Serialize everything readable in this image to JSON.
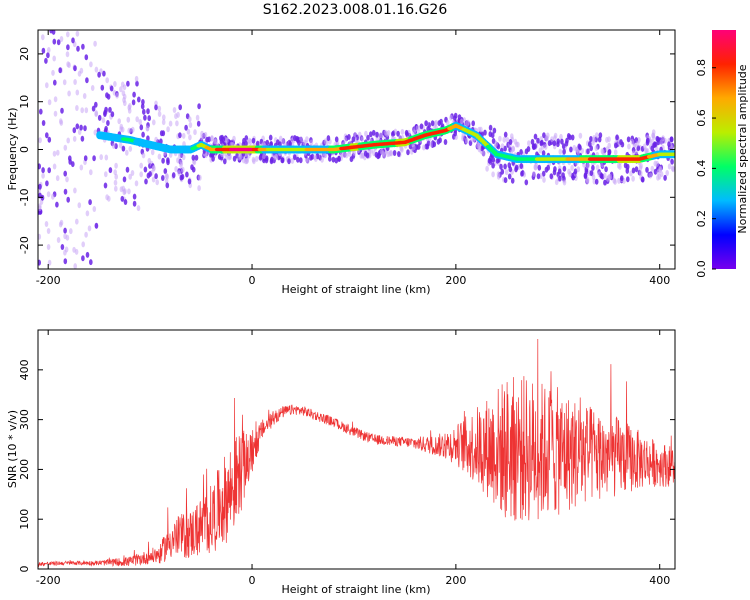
{
  "figure_title": "S162.2023.008.01.16.G26",
  "colors": {
    "snr_line": "#ee3333",
    "spectrum_high": "#ee2222",
    "spectrum_mid": "#33ee55",
    "spectrum_low": "#22bbee",
    "spectrum_floor": "#7722ee"
  },
  "chart_data": [
    {
      "type": "heatmap",
      "xlabel": "Height of straight line (km)",
      "ylabel": "Frequency (Hz)",
      "xlim": [
        -210,
        415
      ],
      "ylim": [
        -25,
        25
      ],
      "x_ticks": [
        -200,
        0,
        200,
        400
      ],
      "y_ticks": [
        -20,
        -10,
        0,
        10,
        20
      ],
      "colorbar": {
        "label": "Normalized spectral amplitude",
        "range": [
          0.0,
          0.95
        ],
        "ticks": [
          0.0,
          0.2,
          0.4,
          0.6,
          0.8
        ],
        "colormap": [
          "#7700ee",
          "#0000ff",
          "#00bbff",
          "#00ff66",
          "#bbee00",
          "#ffaa00",
          "#ff2200",
          "#ff0077"
        ]
      },
      "ridge": {
        "description_points_x": [
          -150,
          -120,
          -100,
          -80,
          -60,
          -50,
          -40,
          -20,
          0,
          20,
          50,
          80,
          100,
          120,
          150,
          170,
          190,
          200,
          220,
          240,
          260,
          300,
          340,
          380,
          400,
          415
        ],
        "frequency": [
          3,
          2,
          1,
          0,
          0,
          1,
          0,
          0,
          0,
          0,
          0,
          0,
          0.5,
          1,
          1.5,
          3,
          4,
          5,
          3,
          -1,
          -2,
          -2,
          -2,
          -2,
          -1,
          -1
        ],
        "amplitude": [
          0.3,
          0.35,
          0.3,
          0.3,
          0.3,
          0.55,
          0.7,
          0.9,
          0.9,
          0.5,
          0.6,
          0.7,
          0.85,
          0.75,
          0.85,
          0.75,
          0.8,
          0.65,
          0.55,
          0.4,
          0.4,
          0.55,
          0.8,
          0.85,
          0.6,
          0.55
        ]
      }
    },
    {
      "type": "line",
      "xlabel": "Height of straight line (km)",
      "ylabel": "SNR (10 * v/v)",
      "xlim": [
        -210,
        415
      ],
      "ylim": [
        0,
        480
      ],
      "x_ticks": [
        -200,
        0,
        200,
        400
      ],
      "y_ticks": [
        0,
        100,
        200,
        300,
        400
      ],
      "series": [
        {
          "x": [
            -210,
            -180,
            -150,
            -120,
            -100,
            -90,
            -80,
            -60,
            -40,
            -20,
            -10,
            0,
            10,
            20,
            30,
            40,
            50,
            60,
            80,
            100,
            120,
            150,
            180,
            200,
            230,
            250,
            270,
            300,
            330,
            360,
            390,
            415
          ],
          "values": [
            10,
            12,
            12,
            15,
            25,
            30,
            60,
            70,
            100,
            160,
            200,
            230,
            280,
            300,
            315,
            320,
            318,
            310,
            295,
            275,
            260,
            255,
            248,
            250,
            245,
            240,
            240,
            235,
            230,
            225,
            215,
            205
          ],
          "noise_amplitude": [
            4,
            4,
            5,
            10,
            15,
            20,
            40,
            50,
            70,
            100,
            80,
            40,
            20,
            15,
            12,
            10,
            10,
            10,
            10,
            10,
            10,
            10,
            20,
            40,
            100,
            150,
            150,
            130,
            100,
            80,
            50,
            40
          ]
        }
      ]
    }
  ]
}
